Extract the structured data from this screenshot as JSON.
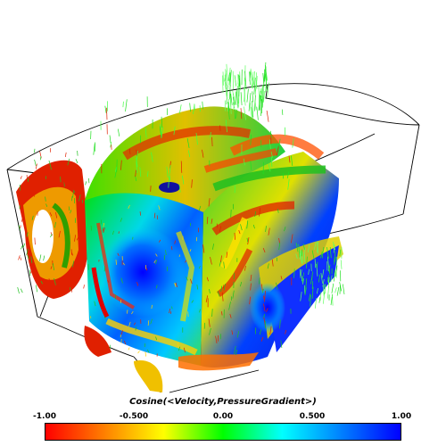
{
  "legend": {
    "title": "Cosine(<Velocity,PressureGradient>)",
    "ticks": [
      "-1.00",
      "-0.500",
      "0.00",
      "0.500",
      "1.00"
    ],
    "colormap": [
      "#ff0000",
      "#ff8000",
      "#ffff00",
      "#00ff00",
      "#00ffff",
      "#0080ff",
      "#0000ff"
    ]
  }
}
